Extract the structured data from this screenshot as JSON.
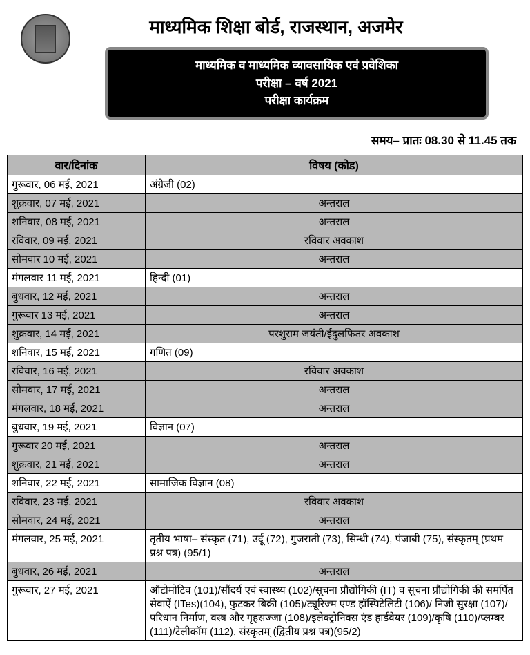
{
  "header": {
    "org": "माध्यमिक शिक्षा बोर्ड, राजस्थान, अजमेर",
    "box_line1": "माध्यमिक व माध्यमिक व्यावसायिक एवं प्रवेशिका",
    "box_line2": "परीक्षा – वर्ष 2021",
    "box_line3": "परीक्षा कार्यक्रम",
    "time": "समय– प्रातः 08.30 से 11.45 तक"
  },
  "table": {
    "col1": "वार/दिनांक",
    "col2": "विषय (कोड)",
    "rows": [
      {
        "date": "गुरूवार, 06 मई, 2021",
        "subject": "अंग्रेजी (02)",
        "gray": false,
        "center": false
      },
      {
        "date": "शुक्रवार, 07 मई, 2021",
        "subject": "अन्तराल",
        "gray": true,
        "center": true
      },
      {
        "date": "शनिवार, 08 मई, 2021",
        "subject": "अन्तराल",
        "gray": true,
        "center": true
      },
      {
        "date": "रविवार, 09 मई, 2021",
        "subject": "रविवार अवकाश",
        "gray": true,
        "center": true
      },
      {
        "date": "सोमवार 10 मई, 2021",
        "subject": "अन्तराल",
        "gray": true,
        "center": true
      },
      {
        "date": "मंगलवार 11 मई, 2021",
        "subject": "हिन्दी (01)",
        "gray": false,
        "center": false
      },
      {
        "date": "बुधवार, 12 मई, 2021",
        "subject": "अन्तराल",
        "gray": true,
        "center": true
      },
      {
        "date": "गुरूवार 13 मई, 2021",
        "subject": "अन्तराल",
        "gray": true,
        "center": true
      },
      {
        "date": "शुक्रवार, 14 मई, 2021",
        "subject": "परशुराम जयंती/ईदुलफितर अवकाश",
        "gray": true,
        "center": true
      },
      {
        "date": "शनिवार, 15 मई, 2021",
        "subject": "गणित (09)",
        "gray": false,
        "center": false
      },
      {
        "date": "रविवार, 16 मई, 2021",
        "subject": "रविवार अवकाश",
        "gray": true,
        "center": true
      },
      {
        "date": "सोमवार, 17 मई, 2021",
        "subject": "अन्तराल",
        "gray": true,
        "center": true
      },
      {
        "date": "मंगलवार, 18 मई, 2021",
        "subject": "अन्तराल",
        "gray": true,
        "center": true
      },
      {
        "date": "बुधवार, 19 मई, 2021",
        "subject": "विज्ञान (07)",
        "gray": false,
        "center": false
      },
      {
        "date": "गुरूवार 20 मई, 2021",
        "subject": "अन्तराल",
        "gray": true,
        "center": true
      },
      {
        "date": "शुक्रवार, 21 मई, 2021",
        "subject": "अन्तराल",
        "gray": true,
        "center": true
      },
      {
        "date": "शनिवार, 22 मई, 2021",
        "subject": "सामाजिक विज्ञान (08)",
        "gray": false,
        "center": false
      },
      {
        "date": "रविवार, 23 मई, 2021",
        "subject": "रविवार अवकाश",
        "gray": true,
        "center": true
      },
      {
        "date": "सोमवार, 24 मई, 2021",
        "subject": "अन्तराल",
        "gray": true,
        "center": true
      },
      {
        "date": "मंगलवार, 25 मई, 2021",
        "subject": "तृतीय भाषा– संस्कृत (71), उर्दू (72), गुजराती (73), सिन्धी (74), पंजाबी (75),  संस्कृतम्  (प्रथम प्रश्न पत्र) (95/1)",
        "gray": false,
        "center": false
      },
      {
        "date": "बुधवार, 26 मई, 2021",
        "subject": "अन्तराल",
        "gray": true,
        "center": true
      },
      {
        "date": "गुरूवार, 27 मई, 2021",
        "subject": "ऑटोमोटिव (101)/सौंदर्य एवं स्वास्थ्य (102)/सूचना प्रौद्योगिकी (IT) व सूचना प्रौद्योगिकी की समर्पित सेवाऐं (ITes)(104), फुटकर बिक्री (105)/ट्यूरिज्म एण्ड हॉस्पिटेलिटी (106)/ निजी सुरक्षा (107)/परिधान निर्माण, वस्त्र और गृहसज्जा (108)/इलेक्ट्रोनिक्स एंड हार्डवेयर (109)/कृषि (110)/प्लम्बर (111)/टेलीकॉम (112), संस्कृतम् (द्वितीय प्रश्न पत्र)(95/2)",
        "gray": false,
        "center": false
      }
    ]
  }
}
